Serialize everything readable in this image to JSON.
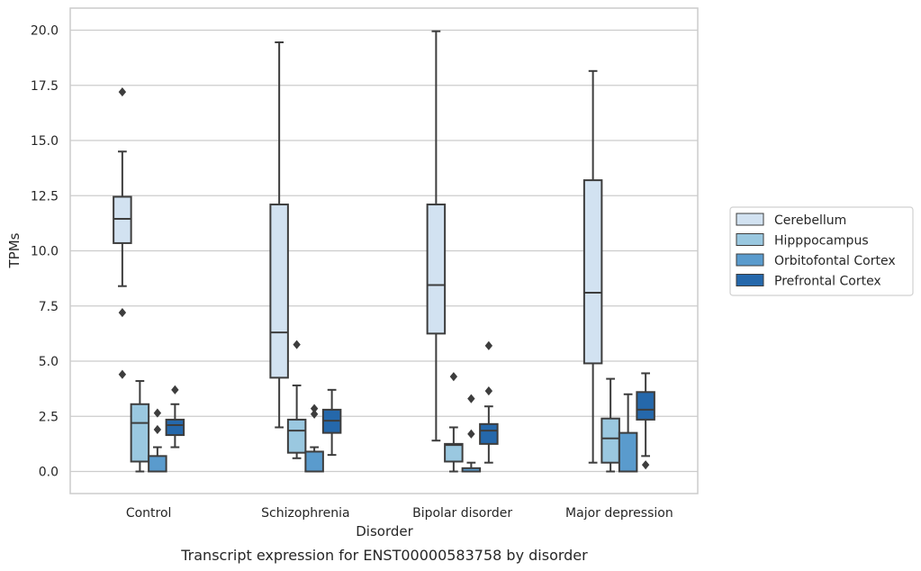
{
  "chart_data": {
    "type": "box",
    "xlabel": "Disorder",
    "ylabel": "TPMs",
    "caption": "Transcript expression for ENST00000583758 by disorder",
    "ylim": [
      -1.0,
      21.0
    ],
    "yticks": [
      "0.0",
      "2.5",
      "5.0",
      "7.5",
      "10.0",
      "12.5",
      "15.0",
      "17.5",
      "20.0"
    ],
    "ytick_values": [
      0,
      2.5,
      5,
      7.5,
      10,
      12.5,
      15,
      17.5,
      20
    ],
    "grid": "horizontal",
    "legend_position": "right",
    "categories": [
      "Control",
      "Schizophrenia",
      "Bipolar disorder",
      "Major depression"
    ],
    "series": [
      {
        "name": "Cerebellum",
        "color": "#d2e2f1",
        "boxes": [
          {
            "whisker_low": 8.4,
            "q1": 10.35,
            "median": 11.45,
            "q3": 12.45,
            "whisker_high": 14.5,
            "outliers": [
              17.2,
              7.2,
              4.4
            ]
          },
          {
            "whisker_low": 2.0,
            "q1": 4.25,
            "median": 6.3,
            "q3": 12.1,
            "whisker_high": 19.45,
            "outliers": []
          },
          {
            "whisker_low": 1.4,
            "q1": 6.25,
            "median": 8.45,
            "q3": 12.1,
            "whisker_high": 19.95,
            "outliers": []
          },
          {
            "whisker_low": 0.4,
            "q1": 4.9,
            "median": 8.1,
            "q3": 13.2,
            "whisker_high": 18.15,
            "outliers": []
          }
        ]
      },
      {
        "name": "Hipppocampus",
        "color": "#9ac8e0",
        "boxes": [
          {
            "whisker_low": 0.0,
            "q1": 0.45,
            "median": 2.2,
            "q3": 3.05,
            "whisker_high": 4.1,
            "outliers": []
          },
          {
            "whisker_low": 0.6,
            "q1": 0.85,
            "median": 1.85,
            "q3": 2.35,
            "whisker_high": 3.9,
            "outliers": [
              5.75
            ]
          },
          {
            "whisker_low": 0.0,
            "q1": 0.45,
            "median": 1.2,
            "q3": 1.25,
            "whisker_high": 2.0,
            "outliers": [
              4.3
            ]
          },
          {
            "whisker_low": 0.0,
            "q1": 0.4,
            "median": 1.5,
            "q3": 2.4,
            "whisker_high": 4.2,
            "outliers": []
          }
        ]
      },
      {
        "name": "Orbitofontal Cortex",
        "color": "#5a9bcd",
        "boxes": [
          {
            "whisker_low": 0.0,
            "q1": 0.0,
            "median": 0.0,
            "q3": 0.7,
            "whisker_high": 1.1,
            "outliers": [
              2.65,
              1.9
            ]
          },
          {
            "whisker_low": 0.0,
            "q1": 0.0,
            "median": 0.0,
            "q3": 0.9,
            "whisker_high": 1.1,
            "outliers": [
              2.85,
              2.6
            ]
          },
          {
            "whisker_low": 0.0,
            "q1": 0.0,
            "median": 0.0,
            "q3": 0.15,
            "whisker_high": 0.4,
            "outliers": [
              3.3,
              1.7
            ]
          },
          {
            "whisker_low": 0.0,
            "q1": 0.0,
            "median": 0.0,
            "q3": 1.75,
            "whisker_high": 3.5,
            "outliers": []
          }
        ]
      },
      {
        "name": "Prefrontal Cortex",
        "color": "#2568ab",
        "boxes": [
          {
            "whisker_low": 1.1,
            "q1": 1.65,
            "median": 2.1,
            "q3": 2.35,
            "whisker_high": 3.05,
            "outliers": [
              3.7
            ]
          },
          {
            "whisker_low": 0.75,
            "q1": 1.75,
            "median": 2.3,
            "q3": 2.8,
            "whisker_high": 3.7,
            "outliers": []
          },
          {
            "whisker_low": 0.4,
            "q1": 1.25,
            "median": 1.85,
            "q3": 2.15,
            "whisker_high": 2.95,
            "outliers": [
              5.7,
              3.65
            ]
          },
          {
            "whisker_low": 0.7,
            "q1": 2.35,
            "median": 2.8,
            "q3": 3.6,
            "whisker_high": 4.45,
            "outliers": [
              0.3
            ]
          }
        ]
      }
    ]
  }
}
